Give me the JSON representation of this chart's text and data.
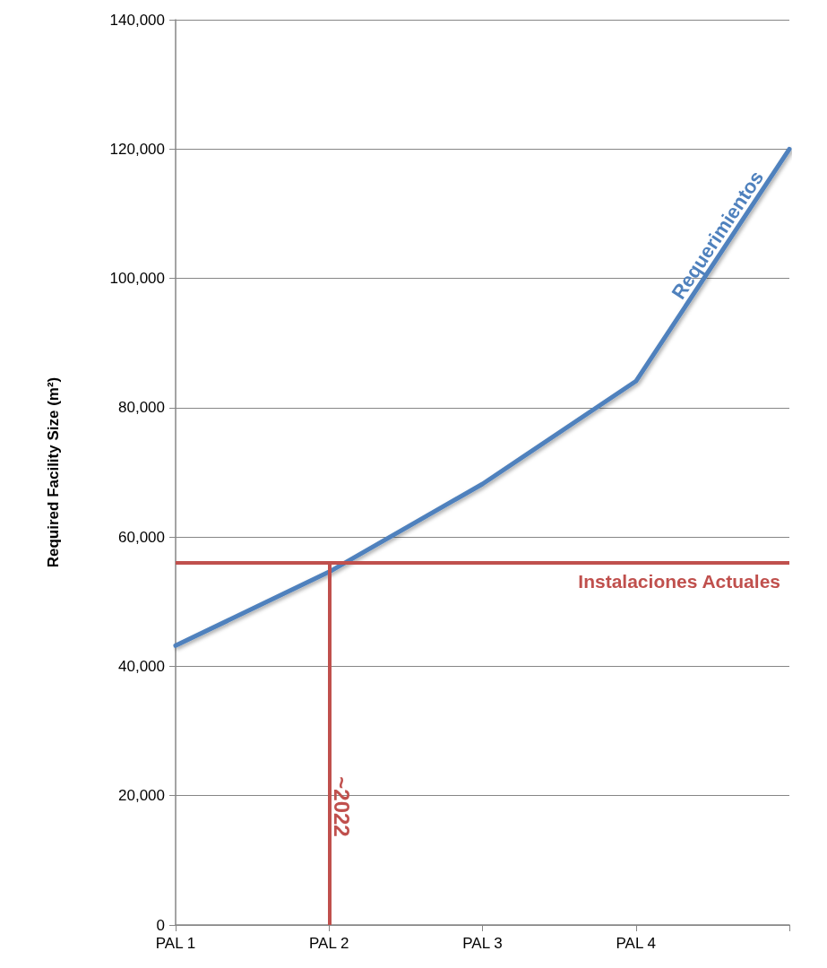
{
  "chart_data": {
    "type": "line",
    "ylabel": "Required Facility Size (m²)",
    "categories": [
      "PAL 1",
      "PAL 2",
      "PAL 3",
      "PAL 4",
      null
    ],
    "series": [
      {
        "name": "Requerimientos",
        "color": "#4f81bd",
        "values": [
          43200,
          54600,
          68200,
          84100,
          120000
        ]
      }
    ],
    "ylim": [
      0,
      140000
    ],
    "yticks": [
      0,
      {
        "value": 20000,
        "label": "20,000"
      },
      {
        "value": 40000,
        "label": "40,000"
      },
      {
        "value": 60000,
        "label": "60,000"
      },
      {
        "value": 80000,
        "label": "80,000"
      },
      {
        "value": 100000,
        "label": "100,000"
      },
      {
        "value": 120000,
        "label": "120,000"
      },
      {
        "value": 140000,
        "label": "140,000"
      }
    ],
    "ref_lines": [
      {
        "axis": "y",
        "value": 56000,
        "label": "Instalaciones Actuales",
        "color": "#c0504d"
      },
      {
        "axis": "x",
        "value": "PAL 2",
        "label": "~2022",
        "color": "#c0504d"
      }
    ],
    "grid": "y",
    "legend": false,
    "marker": "none",
    "line_style": "solid"
  }
}
